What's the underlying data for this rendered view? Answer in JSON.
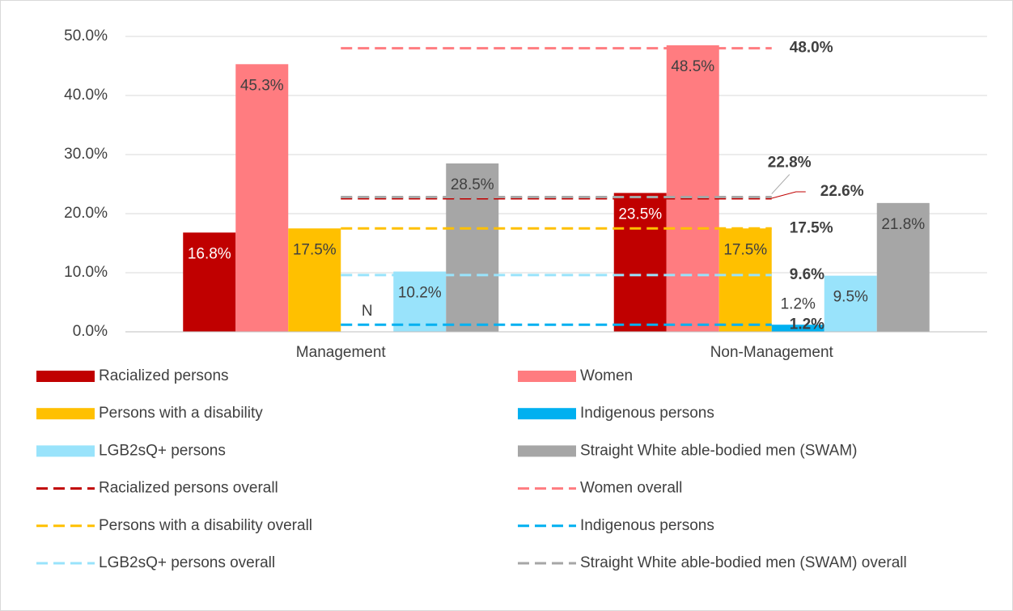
{
  "chart_data": {
    "type": "bar",
    "categories": [
      "Management",
      "Non-Management"
    ],
    "series": [
      {
        "name": "Racialized persons",
        "color": "#c00000",
        "values": [
          16.8,
          23.5
        ],
        "value_labels": [
          "16.8%",
          "23.5%"
        ]
      },
      {
        "name": "Women",
        "color": "#ff7c80",
        "values": [
          45.3,
          48.5
        ],
        "value_labels": [
          "45.3%",
          "48.5%"
        ]
      },
      {
        "name": "Persons with a disability",
        "color": "#ffc000",
        "values": [
          17.5,
          17.5
        ],
        "value_labels": [
          "17.5%",
          "17.5%"
        ]
      },
      {
        "name": "Indigenous persons",
        "color": "#00b0f0",
        "values": [
          null,
          1.2
        ],
        "value_labels": [
          "N",
          "1.2%"
        ]
      },
      {
        "name": "LGB2sQ+ persons",
        "color": "#99e3fb",
        "values": [
          10.2,
          9.5
        ],
        "value_labels": [
          "10.2%",
          "9.5%"
        ]
      },
      {
        "name": "Straight White able-bodied men (SWAM)",
        "color": "#a6a6a6",
        "values": [
          28.5,
          21.8
        ],
        "value_labels": [
          "28.5%",
          "21.8%"
        ]
      }
    ],
    "reference_lines": [
      {
        "name": "Racialized persons overall",
        "color": "#c00000",
        "value": 22.6,
        "value_label": "22.6%"
      },
      {
        "name": "Women overall",
        "color": "#ff7c80",
        "value": 48.0,
        "value_label": "48.0%"
      },
      {
        "name": "Persons with a disability overall",
        "color": "#ffc000",
        "value": 17.5,
        "value_label": "17.5%"
      },
      {
        "name": "Indigenous persons",
        "color": "#00b0f0",
        "value": 1.2,
        "value_label": "1.2%"
      },
      {
        "name": "LGB2sQ+ persons overall",
        "color": "#99e3fb",
        "value": 9.6,
        "value_label": "9.6%"
      },
      {
        "name": "Straight White able-bodied men (SWAM) overall",
        "color": "#a6a6a6",
        "value": 22.8,
        "value_label": "22.8%"
      }
    ],
    "ylim": [
      0,
      50
    ],
    "yticks": [
      {
        "value": 0,
        "label": "0.0%"
      },
      {
        "value": 10,
        "label": "10.0%"
      },
      {
        "value": 20,
        "label": "20.0%"
      },
      {
        "value": 30,
        "label": "30.0%"
      },
      {
        "value": 40,
        "label": "40.0%"
      },
      {
        "value": 50,
        "label": "50.0%"
      }
    ],
    "grid": true
  }
}
